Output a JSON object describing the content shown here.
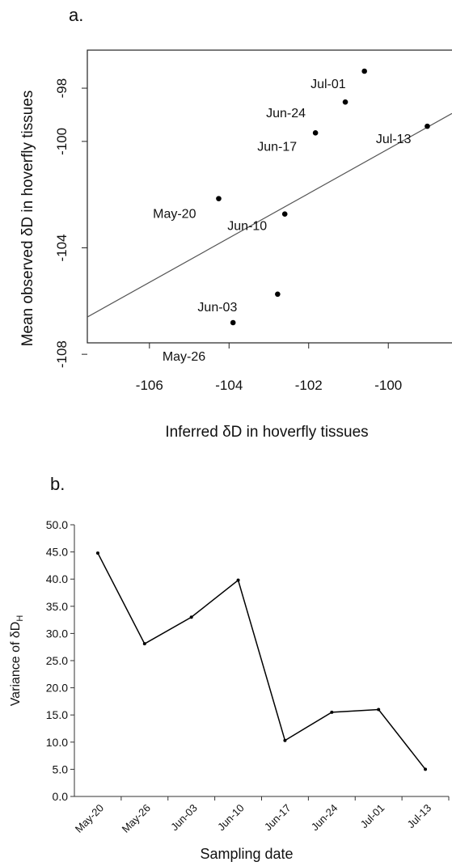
{
  "chart_data": [
    {
      "type": "scatter",
      "panel_label": "a.",
      "xlabel": "Inferred δD in hoverfly tissues",
      "ylabel": "Mean observed δD in hoverfly tissues",
      "labels": [
        "Jul-01",
        "Jun-24",
        "Jun-17",
        "Jul-13",
        "May-20",
        "Jun-10",
        "Jun-03",
        "May-26"
      ],
      "x": [
        -100.6,
        -101.08,
        -101.83,
        -99.02,
        -104.26,
        -102.6,
        -102.78,
        -103.9
      ],
      "values": [
        -97.36,
        -98.52,
        -99.68,
        -99.43,
        -102.15,
        -102.73,
        -105.74,
        -106.81
      ],
      "fit": {
        "x": [
          -107.56,
          -98.4
        ],
        "y": [
          -106.6,
          -98.95
        ]
      },
      "color": "#000000",
      "xlim": [
        -107.56,
        -98.4
      ],
      "ylim": [
        -107.57,
        -96.57
      ],
      "xticks": [
        -106,
        -104,
        -102,
        -100
      ],
      "yticks": [
        -108,
        -104,
        -100,
        -98
      ]
    },
    {
      "type": "line",
      "panel_label": "b.",
      "xlabel": "Sampling date",
      "ylabel": "Variance of δD",
      "ylabel_sub": "H",
      "categories": [
        "May-20",
        "May-26",
        "Jun-03",
        "Jun-10",
        "Jun-17",
        "Jun-24",
        "Jul-01",
        "Jul-13"
      ],
      "values": [
        44.8,
        28.1,
        33.0,
        39.8,
        10.3,
        15.5,
        16.0,
        5.0
      ],
      "color": "#000000",
      "ylim": [
        0,
        50
      ],
      "yticks": [
        {
          "value": 0,
          "label": "0.0"
        },
        {
          "value": 5,
          "label": "5.0"
        },
        {
          "value": 10,
          "label": "10.0"
        },
        {
          "value": 15,
          "label": "15.0"
        },
        {
          "value": 20,
          "label": "20.0"
        },
        {
          "value": 25,
          "label": "25.0"
        },
        {
          "value": 30,
          "label": "30.0"
        },
        {
          "value": 35,
          "label": "35.0"
        },
        {
          "value": 40,
          "label": "40.0"
        },
        {
          "value": 45,
          "label": "45.0"
        },
        {
          "value": 50,
          "label": "50.0"
        }
      ]
    }
  ]
}
